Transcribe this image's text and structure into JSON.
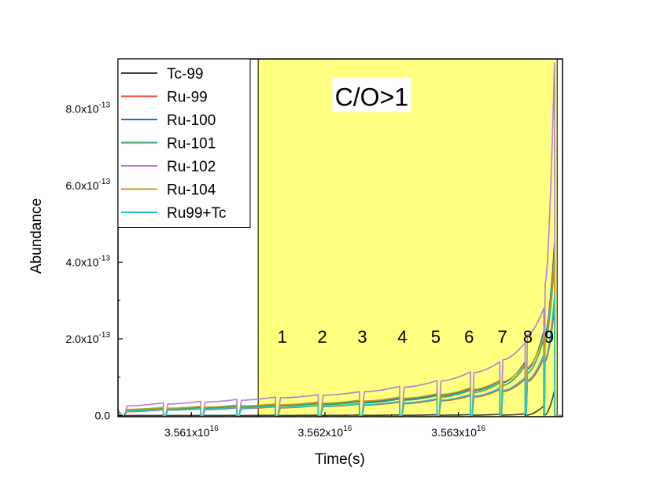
{
  "chart_data": {
    "type": "line",
    "title": "",
    "xlabel": "Time(s)",
    "ylabel": "Abundance",
    "xlim": [
      3.56045e+16,
      3.56378e+16
    ],
    "ylim": [
      -3e-15,
      9.3e-13
    ],
    "x_ticks": [
      {
        "value": 3.561e+16,
        "mantissa": "3.561x10",
        "exp": "16"
      },
      {
        "value": 3.562e+16,
        "mantissa": "3.562x10",
        "exp": "16"
      },
      {
        "value": 3.563e+16,
        "mantissa": "3.563x10",
        "exp": "16"
      }
    ],
    "y_ticks": [
      {
        "value": 0,
        "mantissa": "0.0",
        "exp": ""
      },
      {
        "value": 2e-13,
        "mantissa": "2.0x10",
        "exp": "-13"
      },
      {
        "value": 4e-13,
        "mantissa": "4.0x10",
        "exp": "-13"
      },
      {
        "value": 6e-13,
        "mantissa": "6.0x10",
        "exp": "-13"
      },
      {
        "value": 8e-13,
        "mantissa": "8.0x10",
        "exp": "-13"
      }
    ],
    "grid": false,
    "legend_position": "top-left",
    "shaded_region": {
      "x_start": 3.5615e+16,
      "x_end": 3.56374e+16,
      "color": "#ffff80"
    },
    "annotation": {
      "text": "C/O>1",
      "x": 3.56235e+16,
      "y": 8.2e-13
    },
    "region_labels": [
      {
        "text": "1",
        "x": 3.56168e+16
      },
      {
        "text": "2",
        "x": 3.56198e+16
      },
      {
        "text": "3",
        "x": 3.56228e+16
      },
      {
        "text": "4",
        "x": 3.56258e+16
      },
      {
        "text": "5",
        "x": 3.56283e+16
      },
      {
        "text": "6",
        "x": 3.56308e+16
      },
      {
        "text": "7",
        "x": 3.56333e+16
      },
      {
        "text": "8",
        "x": 3.56352e+16
      },
      {
        "text": "9",
        "x": 3.56368e+16
      }
    ],
    "region_label_y": 1.9e-13,
    "pulse_x": [
      3.56048e+16,
      3.56079e+16,
      3.56107e+16,
      3.56134e+16,
      3.56163e+16,
      3.56195e+16,
      3.56226e+16,
      3.56256e+16,
      3.56284e+16,
      3.56309e+16,
      3.56331e+16,
      3.5635e+16,
      3.56364e+16,
      3.56372e+16
    ],
    "series": [
      {
        "name": "Tc-99",
        "color": "#404040",
        "start": [
          1e-16,
          1e-16,
          1e-16,
          1e-16,
          2e-16,
          3e-16,
          4e-16,
          6e-16,
          8e-16,
          1e-15,
          1.2e-15,
          1.3e-15,
          1.5e-15
        ],
        "end": [
          2e-16,
          3e-16,
          5e-16,
          7e-16,
          9e-16,
          1.2e-15,
          1.5e-15,
          1.9e-15,
          2.4e-15,
          3e-15,
          4e-15,
          2.5e-14,
          6.5e-14
        ]
      },
      {
        "name": "Ru-99",
        "color": "#e8463b",
        "start": [
          1e-14,
          1.4e-14,
          1.5e-14,
          1.8e-14,
          2e-14,
          2.3e-14,
          2.7e-14,
          3.1e-14,
          3.8e-14,
          4.8e-14,
          6.2e-14,
          8.8e-14,
          1.4e-13
        ],
        "end": [
          1.5e-14,
          1.7e-14,
          2e-14,
          2.3e-14,
          2.6e-14,
          3e-14,
          3.5e-14,
          4.2e-14,
          5.2e-14,
          6.8e-14,
          9.5e-14,
          1.5e-13,
          2.8e-13
        ]
      },
      {
        "name": "Ru-100",
        "color": "#1f6fc8",
        "start": [
          1.4e-14,
          1.7e-14,
          2e-14,
          2.3e-14,
          2.6e-14,
          3e-14,
          3.5e-14,
          4.2e-14,
          5.2e-14,
          6.5e-14,
          8.5e-14,
          1.2e-13,
          2.1e-13
        ],
        "end": [
          1.9e-14,
          2.2e-14,
          2.5e-14,
          2.8e-14,
          3.3e-14,
          3.8e-14,
          4.5e-14,
          5.5e-14,
          7e-14,
          9e-14,
          1.4e-13,
          2.2e-13,
          4.5e-13
        ]
      },
      {
        "name": "Ru-101",
        "color": "#2ea36a",
        "start": [
          1.3e-14,
          1.6e-14,
          1.9e-14,
          2.2e-14,
          2.5e-14,
          2.8e-14,
          3.3e-14,
          4e-14,
          4.8e-14,
          6e-14,
          7.8e-14,
          1.1e-13,
          1.9e-13
        ],
        "end": [
          1.8e-14,
          2.1e-14,
          2.4e-14,
          2.7e-14,
          3.1e-14,
          3.6e-14,
          4.3e-14,
          5.2e-14,
          6.6e-14,
          8.5e-14,
          1.3e-13,
          2e-13,
          4e-13
        ]
      },
      {
        "name": "Ru-102",
        "color": "#b07fd8",
        "start": [
          2.5e-14,
          3e-14,
          3.5e-14,
          4e-14,
          4.6e-14,
          5.3e-14,
          6.2e-14,
          7.4e-14,
          9e-14,
          1.12e-13,
          1.45e-13,
          2.1e-13,
          3.4e-13
        ],
        "end": [
          3.3e-14,
          3.7e-14,
          4.2e-14,
          4.8e-14,
          5.4e-14,
          6.2e-14,
          7.6e-14,
          9.1e-14,
          1.14e-13,
          1.4e-13,
          1.9e-13,
          2.8e-13,
          9.2e-13
        ]
      },
      {
        "name": "Ru-104",
        "color": "#c89a22",
        "start": [
          1.6e-14,
          1.9e-14,
          2.2e-14,
          2.5e-14,
          2.8e-14,
          3.2e-14,
          3.8e-14,
          4.5e-14,
          5.5e-14,
          6.8e-14,
          8.8e-14,
          1.25e-13,
          2e-13
        ],
        "end": [
          2.1e-14,
          2.4e-14,
          2.7e-14,
          3e-14,
          3.5e-14,
          4e-14,
          4.8e-14,
          5.7e-14,
          7.2e-14,
          9.2e-14,
          1.35e-13,
          2.1e-13,
          4.2e-13
        ]
      },
      {
        "name": "Ru99+Tc",
        "color": "#22c8c8",
        "start": [
          1.1e-14,
          1.4e-14,
          1.6e-14,
          1.9e-14,
          2.1e-14,
          2.4e-14,
          2.8e-14,
          3.3e-14,
          4e-14,
          5e-14,
          6.5e-14,
          9.2e-14,
          1.45e-13
        ],
        "end": [
          1.6e-14,
          1.8e-14,
          2.1e-14,
          2.4e-14,
          2.7e-14,
          3.1e-14,
          3.7e-14,
          4.4e-14,
          5.5e-14,
          7.2e-14,
          1e-13,
          1.6e-13,
          3.1e-13
        ]
      }
    ]
  }
}
